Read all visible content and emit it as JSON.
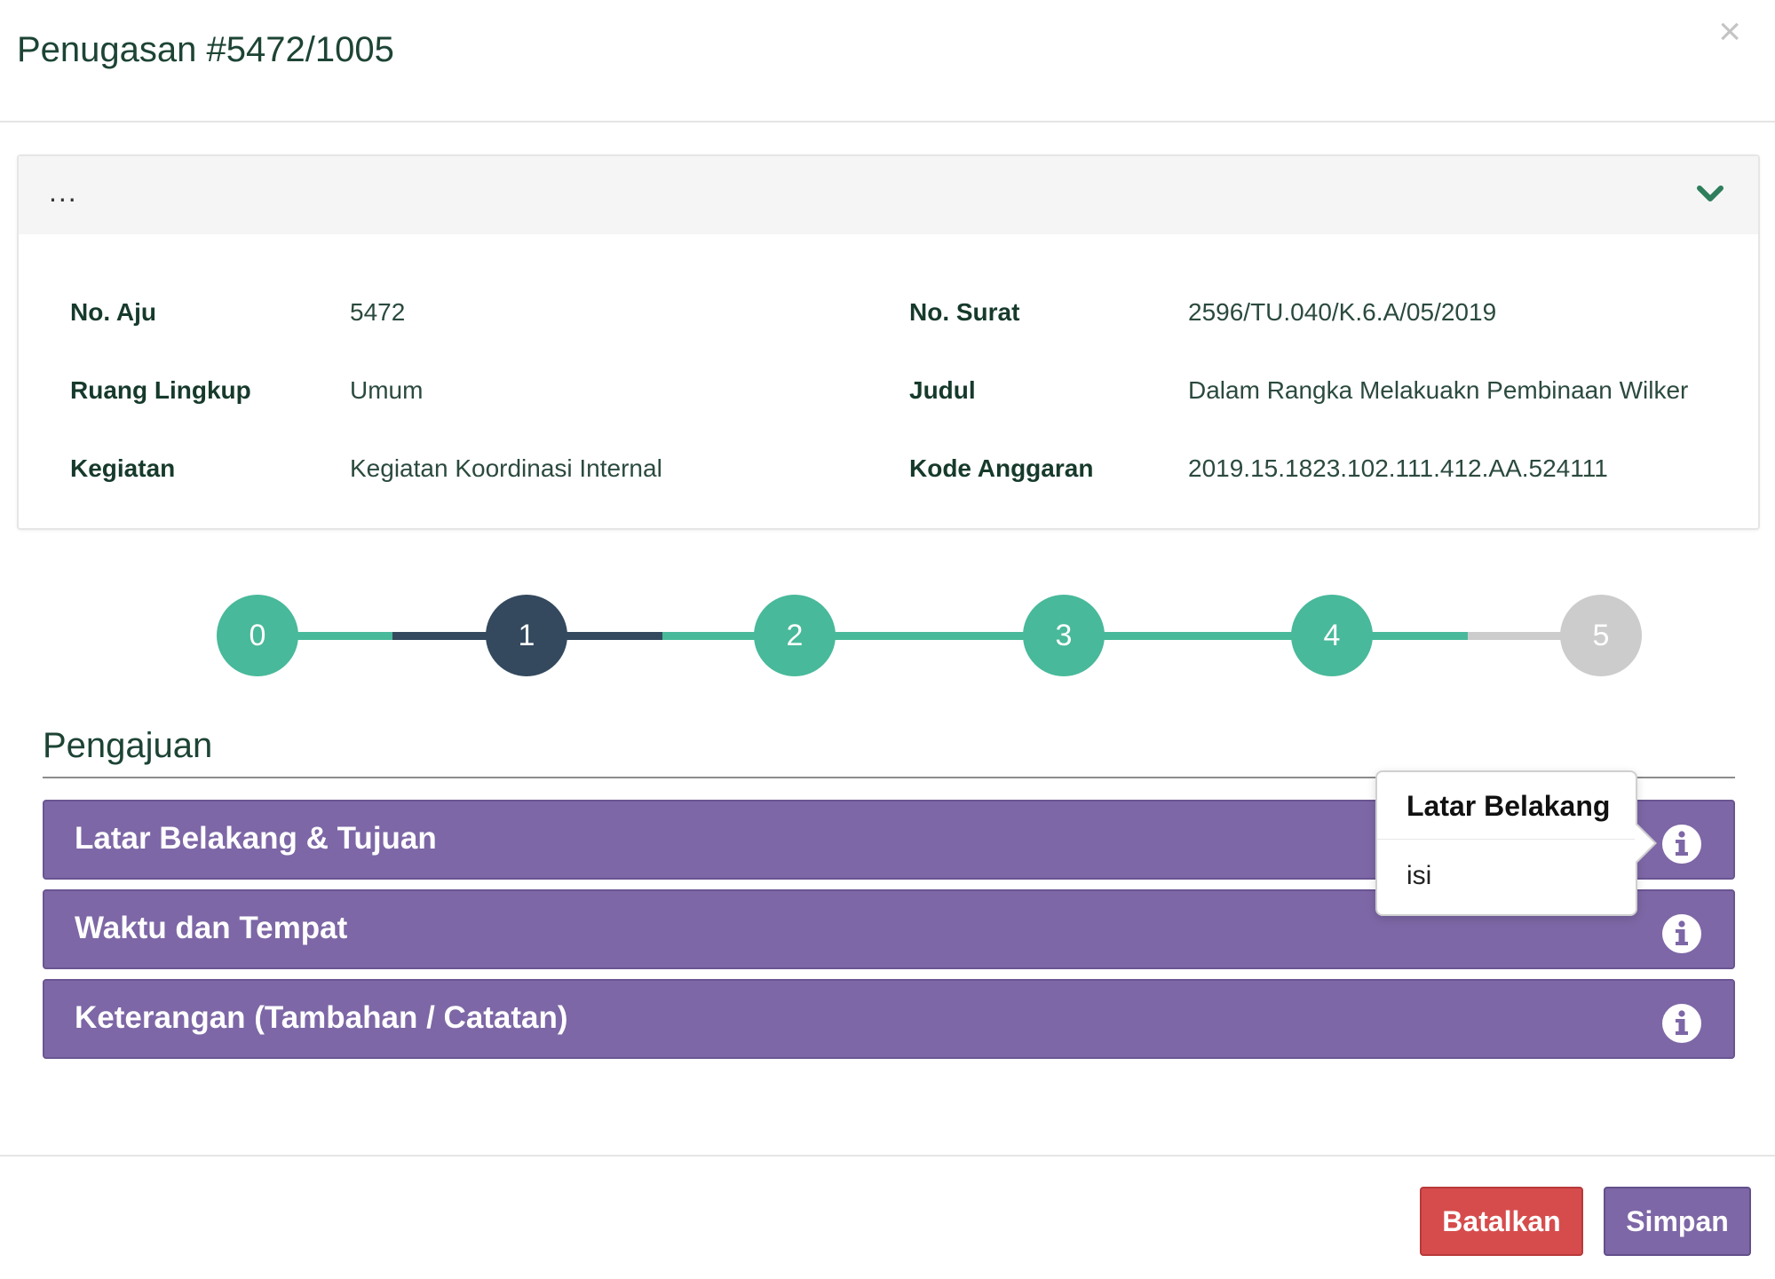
{
  "modal": {
    "title": "Penugasan #5472/1005",
    "close_glyph": "×"
  },
  "panel": {
    "header_text": "...",
    "toggle_icon": "chevron-down-icon",
    "rows": [
      {
        "label_left": "No. Aju",
        "value_left": "5472",
        "label_right": "No. Surat",
        "value_right": "2596/TU.040/K.6.A/05/2019"
      },
      {
        "label_left": "Ruang Lingkup",
        "value_left": "Umum",
        "label_right": "Judul",
        "value_right": "Dalam Rangka Melakuakn Pembinaan Wilker"
      },
      {
        "label_left": "Kegiatan",
        "value_left": "Kegiatan Koordinasi Internal",
        "label_right": "Kode Anggaran",
        "value_right": "2019.15.1823.102.111.412.AA.524111"
      }
    ]
  },
  "stepper": {
    "steps": [
      "0",
      "1",
      "2",
      "3",
      "4",
      "5"
    ],
    "current_step": "1",
    "colors": {
      "done": "#48b99a",
      "current": "#34495e",
      "pending": "#cccccc"
    }
  },
  "section": {
    "title": "Pengajuan",
    "accordions": [
      {
        "label": "Latar Belakang & Tujuan",
        "icon": "info-circle-icon"
      },
      {
        "label": "Waktu dan Tempat",
        "icon": "info-circle-icon"
      },
      {
        "label": "Keterangan (Tambahan / Catatan)",
        "icon": "info-circle-icon"
      }
    ],
    "accent_color": "#7d67a6"
  },
  "popover": {
    "title": "Latar Belakang",
    "body": "isi"
  },
  "footer": {
    "cancel_label": "Batalkan",
    "save_label": "Simpan",
    "cancel_color": "#d64c4c",
    "save_color": "#7d67a6"
  }
}
